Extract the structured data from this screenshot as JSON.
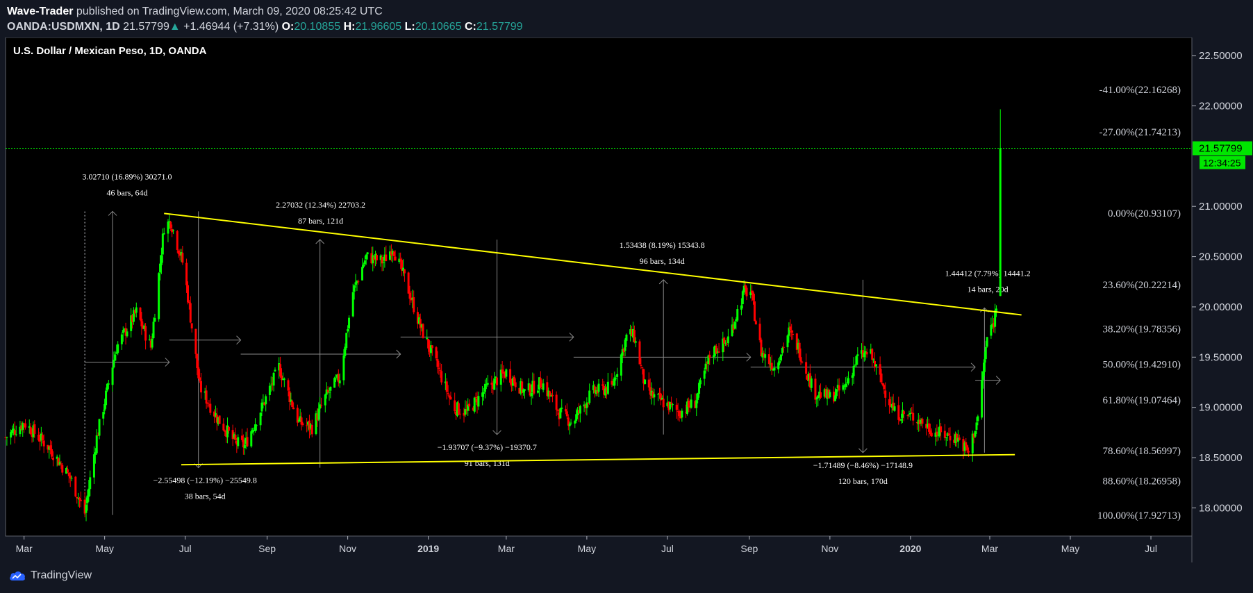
{
  "header": {
    "publisher": "Wave-Trader",
    "published_text": " published on TradingView.com, March 09, 2020 08:25:42 UTC",
    "symbol": "OANDA:USDMXN, 1D",
    "last": "21.57799",
    "change": "+1.46944 (+7.31%)",
    "o_label": "O:",
    "o_value": "20.10855",
    "h_label": "H:",
    "h_value": "21.96605",
    "l_label": "L:",
    "l_value": "20.10665",
    "c_label": "C:",
    "c_value": "21.57799"
  },
  "footer": {
    "brand": "TradingView"
  },
  "colors": {
    "background": "#000000",
    "up": "#00ff00",
    "down": "#ff0000",
    "trendline": "#ffff00",
    "price_line": "#00ff00"
  },
  "chart_data": {
    "type": "candlestick",
    "title": "U.S. Dollar / Mexican Peso, 1D, OANDA",
    "ylim": [
      17.72,
      22.68
    ],
    "y_ticks": [
      "22.50000",
      "22.00000",
      "21.00000",
      "20.50000",
      "20.00000",
      "19.50000",
      "19.00000",
      "18.50000",
      "18.00000"
    ],
    "y_tick_values": [
      22.5,
      22.0,
      21.0,
      20.5,
      20.0,
      19.5,
      19.0,
      18.5,
      18.0
    ],
    "x_range": [
      "2018-02-15",
      "2020-08-01"
    ],
    "x_ticks": [
      {
        "label": "Mar",
        "date": "2018-03-01",
        "bold": false
      },
      {
        "label": "May",
        "date": "2018-05-01",
        "bold": false
      },
      {
        "label": "Jul",
        "date": "2018-07-01",
        "bold": false
      },
      {
        "label": "Sep",
        "date": "2018-09-01",
        "bold": false
      },
      {
        "label": "Nov",
        "date": "2018-11-01",
        "bold": false
      },
      {
        "label": "2019",
        "date": "2019-01-01",
        "bold": true
      },
      {
        "label": "Mar",
        "date": "2019-03-01",
        "bold": false
      },
      {
        "label": "May",
        "date": "2019-05-01",
        "bold": false
      },
      {
        "label": "Jul",
        "date": "2019-07-01",
        "bold": false
      },
      {
        "label": "Sep",
        "date": "2019-09-01",
        "bold": false
      },
      {
        "label": "Nov",
        "date": "2019-11-01",
        "bold": false
      },
      {
        "label": "2020",
        "date": "2020-01-01",
        "bold": true
      },
      {
        "label": "Mar",
        "date": "2020-03-01",
        "bold": false
      },
      {
        "label": "May",
        "date": "2020-05-01",
        "bold": false
      },
      {
        "label": "Jul",
        "date": "2020-07-01",
        "bold": false
      }
    ],
    "price_path": [
      [
        "2018-02-15",
        18.7
      ],
      [
        "2018-03-01",
        18.85
      ],
      [
        "2018-03-20",
        18.6
      ],
      [
        "2018-04-05",
        18.3
      ],
      [
        "2018-04-16",
        17.95
      ],
      [
        "2018-04-25",
        18.7
      ],
      [
        "2018-05-10",
        19.6
      ],
      [
        "2018-05-25",
        19.95
      ],
      [
        "2018-06-05",
        19.6
      ],
      [
        "2018-06-15",
        20.8
      ],
      [
        "2018-06-20",
        20.85
      ],
      [
        "2018-06-30",
        20.4
      ],
      [
        "2018-07-12",
        19.2
      ],
      [
        "2018-07-25",
        18.9
      ],
      [
        "2018-08-08",
        18.65
      ],
      [
        "2018-08-15",
        18.62
      ],
      [
        "2018-08-28",
        19.0
      ],
      [
        "2018-09-10",
        19.4
      ],
      [
        "2018-09-25",
        18.85
      ],
      [
        "2018-10-05",
        18.8
      ],
      [
        "2018-10-15",
        19.1
      ],
      [
        "2018-10-26",
        19.3
      ],
      [
        "2018-11-05",
        20.15
      ],
      [
        "2018-11-15",
        20.5
      ],
      [
        "2018-11-28",
        20.45
      ],
      [
        "2018-12-05",
        20.6
      ],
      [
        "2018-12-15",
        20.25
      ],
      [
        "2018-12-26",
        19.8
      ],
      [
        "2019-01-08",
        19.4
      ],
      [
        "2019-01-20",
        19.0
      ],
      [
        "2019-01-30",
        18.95
      ],
      [
        "2019-02-15",
        19.2
      ],
      [
        "2019-03-01",
        19.35
      ],
      [
        "2019-03-15",
        19.15
      ],
      [
        "2019-03-28",
        19.25
      ],
      [
        "2019-04-10",
        18.95
      ],
      [
        "2019-04-20",
        18.85
      ],
      [
        "2019-05-05",
        19.15
      ],
      [
        "2019-05-20",
        19.2
      ],
      [
        "2019-06-01",
        19.75
      ],
      [
        "2019-06-06",
        19.7
      ],
      [
        "2019-06-15",
        19.15
      ],
      [
        "2019-06-28",
        19.05
      ],
      [
        "2019-07-10",
        18.95
      ],
      [
        "2019-07-22",
        19.05
      ],
      [
        "2019-08-03",
        19.55
      ],
      [
        "2019-08-15",
        19.65
      ],
      [
        "2019-08-28",
        20.15
      ],
      [
        "2019-09-02",
        20.15
      ],
      [
        "2019-09-10",
        19.55
      ],
      [
        "2019-09-20",
        19.4
      ],
      [
        "2019-10-01",
        19.75
      ],
      [
        "2019-10-08",
        19.6
      ],
      [
        "2019-10-20",
        19.15
      ],
      [
        "2019-11-01",
        19.1
      ],
      [
        "2019-11-12",
        19.2
      ],
      [
        "2019-11-22",
        19.5
      ],
      [
        "2019-12-01",
        19.55
      ],
      [
        "2019-12-10",
        19.25
      ],
      [
        "2019-12-20",
        18.95
      ],
      [
        "2020-01-05",
        18.9
      ],
      [
        "2020-01-20",
        18.75
      ],
      [
        "2020-02-05",
        18.7
      ],
      [
        "2020-02-14",
        18.55
      ],
      [
        "2020-02-21",
        18.9
      ],
      [
        "2020-02-28",
        19.7
      ],
      [
        "2020-03-04",
        19.85
      ],
      [
        "2020-03-07",
        20.1
      ],
      [
        "2020-03-09",
        21.57799
      ]
    ],
    "last_candle": {
      "date": "2020-03-09",
      "open": 20.10855,
      "high": 21.96605,
      "low": 20.10665,
      "close": 21.57799
    },
    "last_price_label": "21.57799",
    "countdown_label": "12:34:25",
    "trendlines": [
      {
        "from": [
          "2018-06-15",
          20.93
        ],
        "to": [
          "2020-03-25",
          19.92
        ]
      },
      {
        "from": [
          "2018-06-28",
          18.43
        ],
        "to": [
          "2020-03-20",
          18.53
        ]
      }
    ],
    "fib_levels": [
      {
        "label": "-41.00%(22.16268)",
        "price": 22.16268
      },
      {
        "label": "-27.00%(21.74213)",
        "price": 21.74213
      },
      {
        "label": "0.00%(20.93107)",
        "price": 20.93107
      },
      {
        "label": "23.60%(20.22214)",
        "price": 20.22214
      },
      {
        "label": "38.20%(19.78356)",
        "price": 19.78356
      },
      {
        "label": "50.00%(19.42910)",
        "price": 19.4291
      },
      {
        "label": "61.80%(19.07464)",
        "price": 19.07464
      },
      {
        "label": "78.60%(18.56997)",
        "price": 18.56997
      },
      {
        "label": "88.60%(18.26958)",
        "price": 18.26958
      },
      {
        "label": "100.00%(17.92713)",
        "price": 17.92713
      }
    ],
    "measurements": [
      {
        "line1": "3.02710 (16.89%) 30271.0",
        "line2": "46 bars, 64d",
        "start": [
          "2018-04-16",
          17.93
        ],
        "end": [
          "2018-06-19",
          20.95
        ],
        "vx": "2018-05-07",
        "hy": 19.45,
        "label_pos": "above"
      },
      {
        "line1": "−2.55498 (−12.19%) −25549.8",
        "line2": "38 bars, 54d",
        "start": [
          "2018-06-19",
          20.95
        ],
        "end": [
          "2018-08-12",
          18.4
        ],
        "vx": "2018-07-11",
        "hy": 19.67,
        "label_pos": "below"
      },
      {
        "line1": "2.27032 (12.34%) 22703.2",
        "line2": "87 bars, 121d",
        "start": [
          "2018-08-12",
          18.4
        ],
        "end": [
          "2018-12-11",
          20.67
        ],
        "vx": "2018-10-11",
        "hy": 19.53,
        "label_pos": "above"
      },
      {
        "line1": "−1.93707 (−9.37%) −19370.7",
        "line2": "91 bars, 131d",
        "start": [
          "2018-12-11",
          20.67
        ],
        "end": [
          "2019-04-21",
          18.73
        ],
        "vx": "2019-02-22",
        "hy": 19.7,
        "label_pos": "below"
      },
      {
        "line1": "1.53438 (8.19%) 15343.8",
        "line2": "96 bars, 134d",
        "start": [
          "2019-04-21",
          18.73
        ],
        "end": [
          "2019-09-02",
          20.27
        ],
        "vx": "2019-06-28",
        "hy": 19.5,
        "label_pos": "above"
      },
      {
        "line1": "−1.71489 (−8.46%) −17148.9",
        "line2": "120 bars, 170d",
        "start": [
          "2019-09-02",
          20.27
        ],
        "end": [
          "2020-02-19",
          18.55
        ],
        "vx": "2019-11-26",
        "hy": 19.4,
        "label_pos": "below"
      },
      {
        "line1": "1.44412 (7.79%) 14441.2",
        "line2": "14 bars, 20d",
        "start": [
          "2020-02-19",
          18.55
        ],
        "end": [
          "2020-03-09",
          19.99
        ],
        "vx": "2020-02-26",
        "hy": 19.27,
        "label_pos": "above"
      }
    ]
  }
}
